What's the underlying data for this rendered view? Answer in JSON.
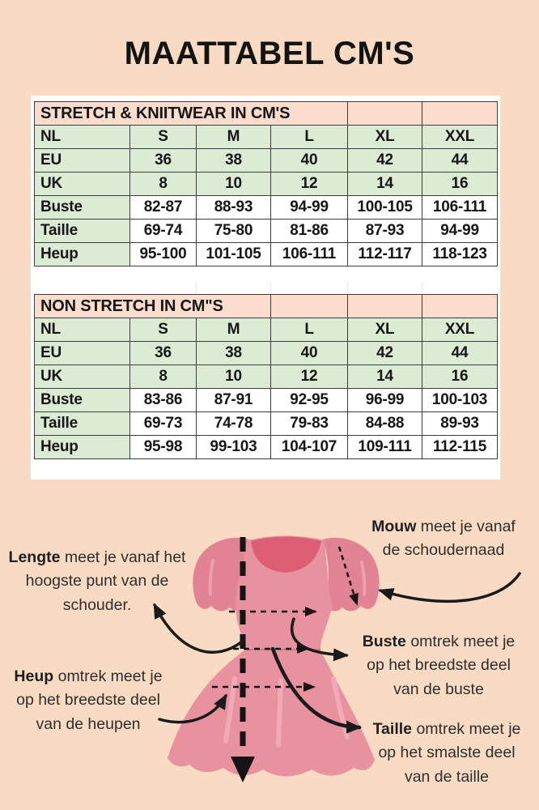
{
  "title": "MAATTABEL CM'S",
  "colors": {
    "background": "#f9dac2",
    "table_title_bg": "#fbdccd",
    "table_green_bg": "#dcebd4",
    "table_white_bg": "#ffffff",
    "table_border": "#3c3c3c",
    "dress_body_pink": "#e8919f",
    "dress_sleeve_pink": "#e28394",
    "dress_neckline_pink": "#dd5f75",
    "arrow_black": "#1a1a1a"
  },
  "tables": [
    {
      "title": "STRETCH & KNIITWEAR IN CM'S",
      "title_colspan": 4,
      "rows": [
        {
          "label": "NL",
          "section": "sizes",
          "values": [
            "S",
            "M",
            "L",
            "XL",
            "XXL"
          ]
        },
        {
          "label": "EU",
          "section": "sizes",
          "values": [
            "36",
            "38",
            "40",
            "42",
            "44"
          ]
        },
        {
          "label": "UK",
          "section": "sizes",
          "values": [
            "8",
            "10",
            "12",
            "14",
            "16"
          ]
        },
        {
          "label": "Buste",
          "section": "measurements",
          "values": [
            "82-87",
            "88-93",
            "94-99",
            "100-105",
            "106-111"
          ]
        },
        {
          "label": "Taille",
          "section": "measurements",
          "values": [
            "69-74",
            "75-80",
            "81-86",
            "87-93",
            "94-99"
          ]
        },
        {
          "label": "Heup",
          "section": "measurements",
          "values": [
            "95-100",
            "101-105",
            "106-111",
            "112-117",
            "118-123"
          ]
        }
      ]
    },
    {
      "title": "NON STRETCH IN CM\"S",
      "title_colspan": 3,
      "rows": [
        {
          "label": "NL",
          "section": "sizes",
          "values": [
            "S",
            "M",
            "L",
            "XL",
            "XXL"
          ]
        },
        {
          "label": "EU",
          "section": "sizes",
          "values": [
            "36",
            "38",
            "40",
            "42",
            "44"
          ]
        },
        {
          "label": "UK",
          "section": "sizes",
          "values": [
            "8",
            "10",
            "12",
            "14",
            "16"
          ]
        },
        {
          "label": "Buste",
          "section": "measurements",
          "values": [
            "83-86",
            "87-91",
            "92-95",
            "96-99",
            "100-103"
          ]
        },
        {
          "label": "Taille",
          "section": "measurements",
          "values": [
            "69-73",
            "74-78",
            "79-83",
            "84-88",
            "89-93"
          ]
        },
        {
          "label": "Heup",
          "section": "measurements",
          "values": [
            "95-98",
            "99-103",
            "104-107",
            "109-111",
            "112-115"
          ]
        }
      ]
    }
  ],
  "annotations": {
    "lengte": {
      "lead": "Lengte",
      "line1": "meet je vanaf het",
      "line2": "hoogste punt van de",
      "line3": "schouder."
    },
    "mouw": {
      "lead": "Mouw",
      "line1": "meet je vanaf",
      "line2": "de schoudernaad",
      "line3": ""
    },
    "buste": {
      "lead": "Buste",
      "line1": "omtrek meet je",
      "line2": "op het breedste deel",
      "line3": "van de buste"
    },
    "heup": {
      "lead": "Heup",
      "line1": "omtrek meet je",
      "line2": "op het breedste deel",
      "line3": "van de heupen"
    },
    "taille": {
      "lead": "Taille",
      "line1": "omtrek meet je",
      "line2": "op het smalste deel",
      "line3": "van de taille"
    }
  }
}
